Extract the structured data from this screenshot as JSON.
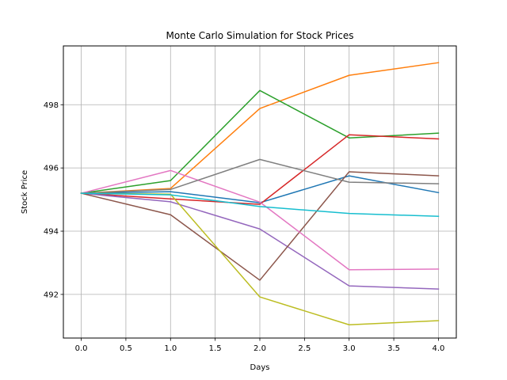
{
  "chart_data": {
    "type": "line",
    "title": "Monte Carlo Simulation for Stock Prices",
    "xlabel": "Days",
    "ylabel": "Stock Price",
    "xlim": [
      -0.2,
      4.2
    ],
    "ylim": [
      490.62,
      499.86
    ],
    "xticks": [
      0,
      0.5,
      1,
      1.5,
      2,
      2.5,
      3,
      3.5,
      4
    ],
    "xtick_labels": [
      "0.0",
      "0.5",
      "1.0",
      "1.5",
      "2.0",
      "2.5",
      "3.0",
      "3.5",
      "4.0"
    ],
    "yticks": [
      492,
      494,
      496,
      498
    ],
    "ytick_labels": [
      "492",
      "494",
      "496",
      "498"
    ],
    "grid": true,
    "x": [
      0,
      1,
      2,
      3,
      4
    ],
    "series": [
      {
        "color": "#1f77b4",
        "values": [
          495.2,
          495.25,
          494.9,
          495.75,
          495.22
        ]
      },
      {
        "color": "#ff7f0e",
        "values": [
          495.2,
          495.35,
          497.88,
          498.93,
          499.33
        ]
      },
      {
        "color": "#2ca02c",
        "values": [
          495.2,
          495.6,
          498.45,
          496.95,
          497.1
        ]
      },
      {
        "color": "#d62728",
        "values": [
          495.2,
          495.02,
          494.85,
          497.05,
          496.92
        ]
      },
      {
        "color": "#9467bd",
        "values": [
          495.2,
          494.93,
          494.07,
          492.27,
          492.17
        ]
      },
      {
        "color": "#8c564b",
        "values": [
          495.2,
          494.52,
          492.45,
          495.88,
          495.75
        ]
      },
      {
        "color": "#e377c2",
        "values": [
          495.2,
          495.92,
          494.92,
          492.78,
          492.8
        ]
      },
      {
        "color": "#7f7f7f",
        "values": [
          495.2,
          495.32,
          496.27,
          495.55,
          495.5
        ]
      },
      {
        "color": "#bcbd22",
        "values": [
          495.2,
          495.17,
          491.92,
          491.04,
          491.17
        ]
      },
      {
        "color": "#17becf",
        "values": [
          495.2,
          495.15,
          494.78,
          494.56,
          494.47
        ]
      }
    ]
  }
}
